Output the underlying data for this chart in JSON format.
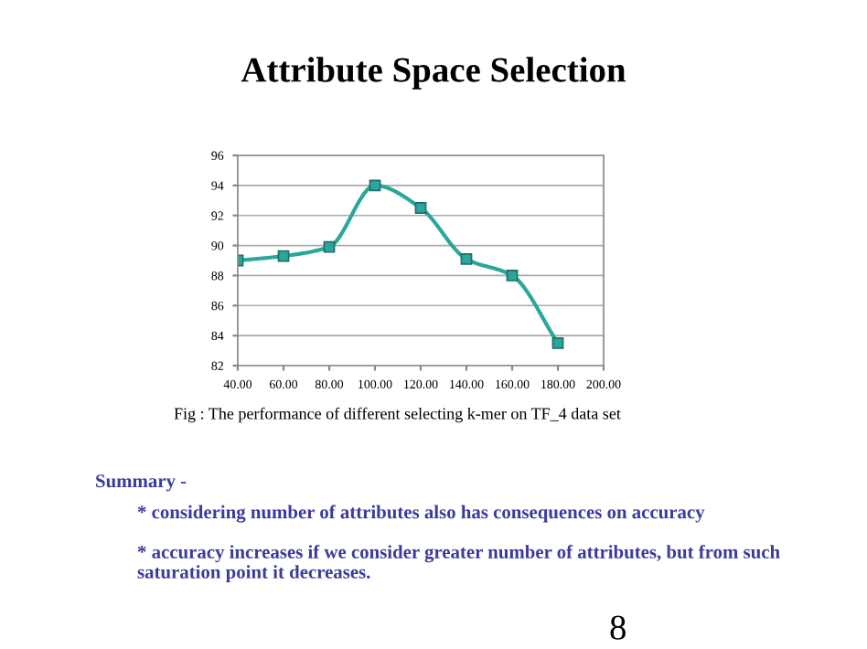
{
  "chart_data": {
    "type": "line",
    "title": "Attribute Space Selection",
    "x": [
      40,
      60,
      80,
      100,
      120,
      140,
      160,
      180
    ],
    "series": [
      {
        "color": "#2aa79b",
        "values": [
          89.0,
          89.3,
          89.9,
          94.0,
          92.5,
          89.1,
          88.0,
          83.5
        ]
      }
    ],
    "xlim": [
      40,
      200
    ],
    "xticks": [
      {
        "value": 40,
        "label": "40.00"
      },
      {
        "value": 60,
        "label": "60.00"
      },
      {
        "value": 80,
        "label": "80.00"
      },
      {
        "value": 100,
        "label": "100.00"
      },
      {
        "value": 120,
        "label": "120.00"
      },
      {
        "value": 140,
        "label": "140.00"
      },
      {
        "value": 160,
        "label": "160.00"
      },
      {
        "value": 180,
        "label": "180.00"
      },
      {
        "value": 200,
        "label": "200.00"
      }
    ],
    "ylim": [
      82,
      96
    ],
    "yticks": [
      82,
      84,
      86,
      88,
      90,
      92,
      94,
      96
    ],
    "grid": "y",
    "marker": "square",
    "line_style": "solid",
    "annotations": [
      "Fig : The performance of different selecting k-mer on TF_4 data set",
      "Summary -",
      "* considering number of attributes also has consequences on accuracy",
      "* accuracy increases if we consider greater number of attributes, but from such saturation point it decreases.",
      "8"
    ]
  }
}
